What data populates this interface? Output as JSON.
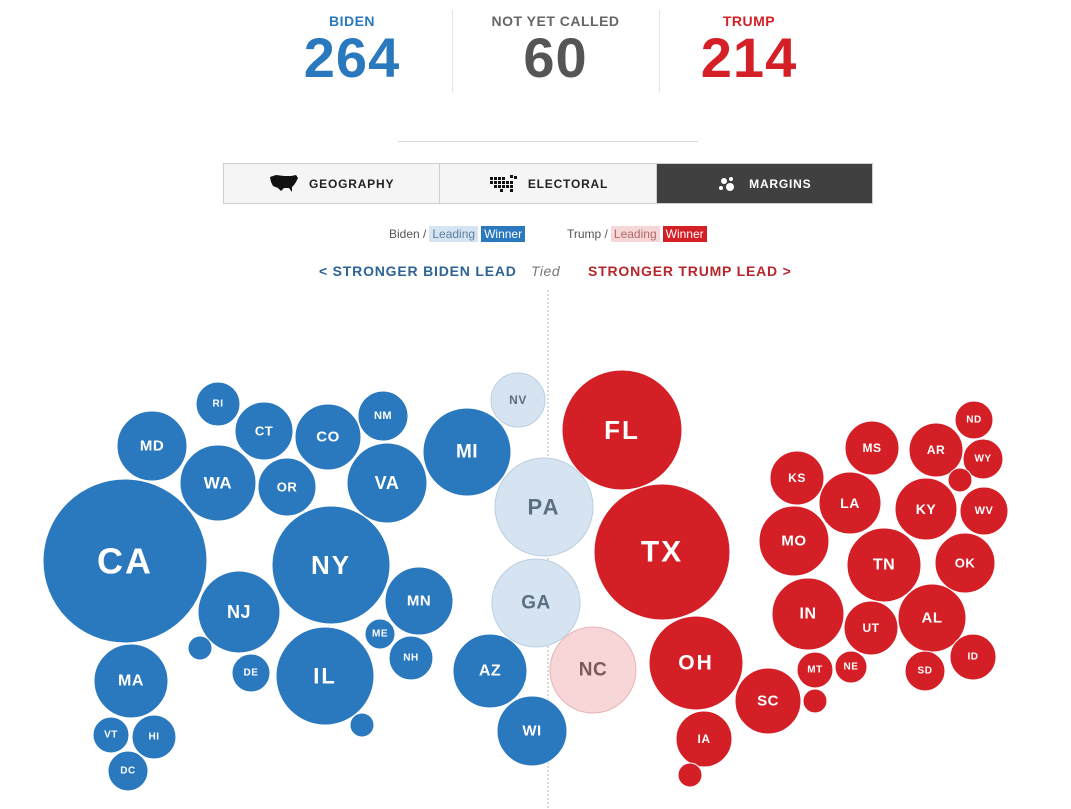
{
  "tally": {
    "biden": {
      "label": "BIDEN",
      "value": "264",
      "color": "#2a78bd"
    },
    "not_called": {
      "label": "NOT YET CALLED",
      "value": "60",
      "color": "#555555"
    },
    "trump": {
      "label": "TRUMP",
      "value": "214",
      "color": "#d41f26"
    }
  },
  "tabs": [
    {
      "label": "GEOGRAPHY",
      "icon": "us-map-icon",
      "active": false
    },
    {
      "label": "ELECTORAL",
      "icon": "electoral-grid-map-icon",
      "active": false
    },
    {
      "label": "MARGINS",
      "icon": "bubbles-icon",
      "active": true
    }
  ],
  "legend": {
    "biden": {
      "prefix": "Biden /",
      "leading": "Leading",
      "winner": "Winner"
    },
    "trump": {
      "prefix": "Trump /",
      "leading": "Leading",
      "winner": "Winner"
    }
  },
  "axis": {
    "left": "< STRONGER BIDEN LEAD",
    "center": "Tied",
    "right": "STRONGER TRUMP LEAD >"
  },
  "colors": {
    "biden_winner": "#2a78bd",
    "biden_leading": "#d6e4f1",
    "trump_winner": "#d41f26",
    "trump_leading": "#f6d6d6"
  },
  "chart_data": {
    "type": "bubble",
    "size_measure": "electoral votes",
    "x_measure": "margin",
    "states": [
      {
        "label": "CA",
        "status": "biden_winner",
        "ev": 55
      },
      {
        "label": "NY",
        "status": "biden_winner",
        "ev": 29
      },
      {
        "label": "IL",
        "status": "biden_winner",
        "ev": 20
      },
      {
        "label": "MA",
        "status": "biden_winner",
        "ev": 11
      },
      {
        "label": "NJ",
        "status": "biden_winner",
        "ev": 14
      },
      {
        "label": "MD",
        "status": "biden_winner",
        "ev": 10
      },
      {
        "label": "WA",
        "status": "biden_winner",
        "ev": 12
      },
      {
        "label": "VA",
        "status": "biden_winner",
        "ev": 13
      },
      {
        "label": "CO",
        "status": "biden_winner",
        "ev": 9
      },
      {
        "label": "OR",
        "status": "biden_winner",
        "ev": 7
      },
      {
        "label": "CT",
        "status": "biden_winner",
        "ev": 7
      },
      {
        "label": "MI",
        "status": "biden_winner",
        "ev": 16
      },
      {
        "label": "MN",
        "status": "biden_winner",
        "ev": 10
      },
      {
        "label": "NM",
        "status": "biden_winner",
        "ev": 5
      },
      {
        "label": "RI",
        "status": "biden_winner",
        "ev": 4
      },
      {
        "label": "DE",
        "status": "biden_winner",
        "ev": 3
      },
      {
        "label": "ME",
        "status": "biden_winner",
        "ev": 2
      },
      {
        "label": "NH",
        "status": "biden_winner",
        "ev": 4
      },
      {
        "label": "VT",
        "status": "biden_winner",
        "ev": 3
      },
      {
        "label": "HI",
        "status": "biden_winner",
        "ev": 4
      },
      {
        "label": "DC",
        "status": "biden_winner",
        "ev": 3
      },
      {
        "label": "",
        "status": "biden_winner",
        "ev": 1
      },
      {
        "label": "",
        "status": "biden_winner",
        "ev": 1
      },
      {
        "label": "AZ",
        "status": "biden_winner",
        "ev": 11
      },
      {
        "label": "WI",
        "status": "biden_winner",
        "ev": 10
      },
      {
        "label": "NV",
        "status": "biden_leading",
        "ev": 6
      },
      {
        "label": "PA",
        "status": "biden_leading",
        "ev": 20
      },
      {
        "label": "GA",
        "status": "biden_leading",
        "ev": 16
      },
      {
        "label": "NC",
        "status": "trump_leading",
        "ev": 15
      },
      {
        "label": "FL",
        "status": "trump_winner",
        "ev": 29
      },
      {
        "label": "TX",
        "status": "trump_winner",
        "ev": 38
      },
      {
        "label": "OH",
        "status": "trump_winner",
        "ev": 18
      },
      {
        "label": "IA",
        "status": "trump_winner",
        "ev": 6
      },
      {
        "label": "",
        "status": "trump_winner",
        "ev": 1
      },
      {
        "label": "SC",
        "status": "trump_winner",
        "ev": 9
      },
      {
        "label": "",
        "status": "trump_winner",
        "ev": 1
      },
      {
        "label": "MT",
        "status": "trump_winner",
        "ev": 3
      },
      {
        "label": "NE",
        "status": "trump_winner",
        "ev": 2
      },
      {
        "label": "IN",
        "status": "trump_winner",
        "ev": 11
      },
      {
        "label": "UT",
        "status": "trump_winner",
        "ev": 6
      },
      {
        "label": "MO",
        "status": "trump_winner",
        "ev": 10
      },
      {
        "label": "KS",
        "status": "trump_winner",
        "ev": 6
      },
      {
        "label": "LA",
        "status": "trump_winner",
        "ev": 8
      },
      {
        "label": "MS",
        "status": "trump_winner",
        "ev": 6
      },
      {
        "label": "TN",
        "status": "trump_winner",
        "ev": 11
      },
      {
        "label": "AL",
        "status": "trump_winner",
        "ev": 9
      },
      {
        "label": "KY",
        "status": "trump_winner",
        "ev": 8
      },
      {
        "label": "AR",
        "status": "trump_winner",
        "ev": 6
      },
      {
        "label": "OK",
        "status": "trump_winner",
        "ev": 7
      },
      {
        "label": "WV",
        "status": "trump_winner",
        "ev": 5
      },
      {
        "label": "WY",
        "status": "trump_winner",
        "ev": 3
      },
      {
        "label": "ND",
        "status": "trump_winner",
        "ev": 3
      },
      {
        "label": "",
        "status": "trump_winner",
        "ev": 1
      },
      {
        "label": "SD",
        "status": "trump_winner",
        "ev": 3
      },
      {
        "label": "ID",
        "status": "trump_winner",
        "ev": 4
      }
    ]
  }
}
